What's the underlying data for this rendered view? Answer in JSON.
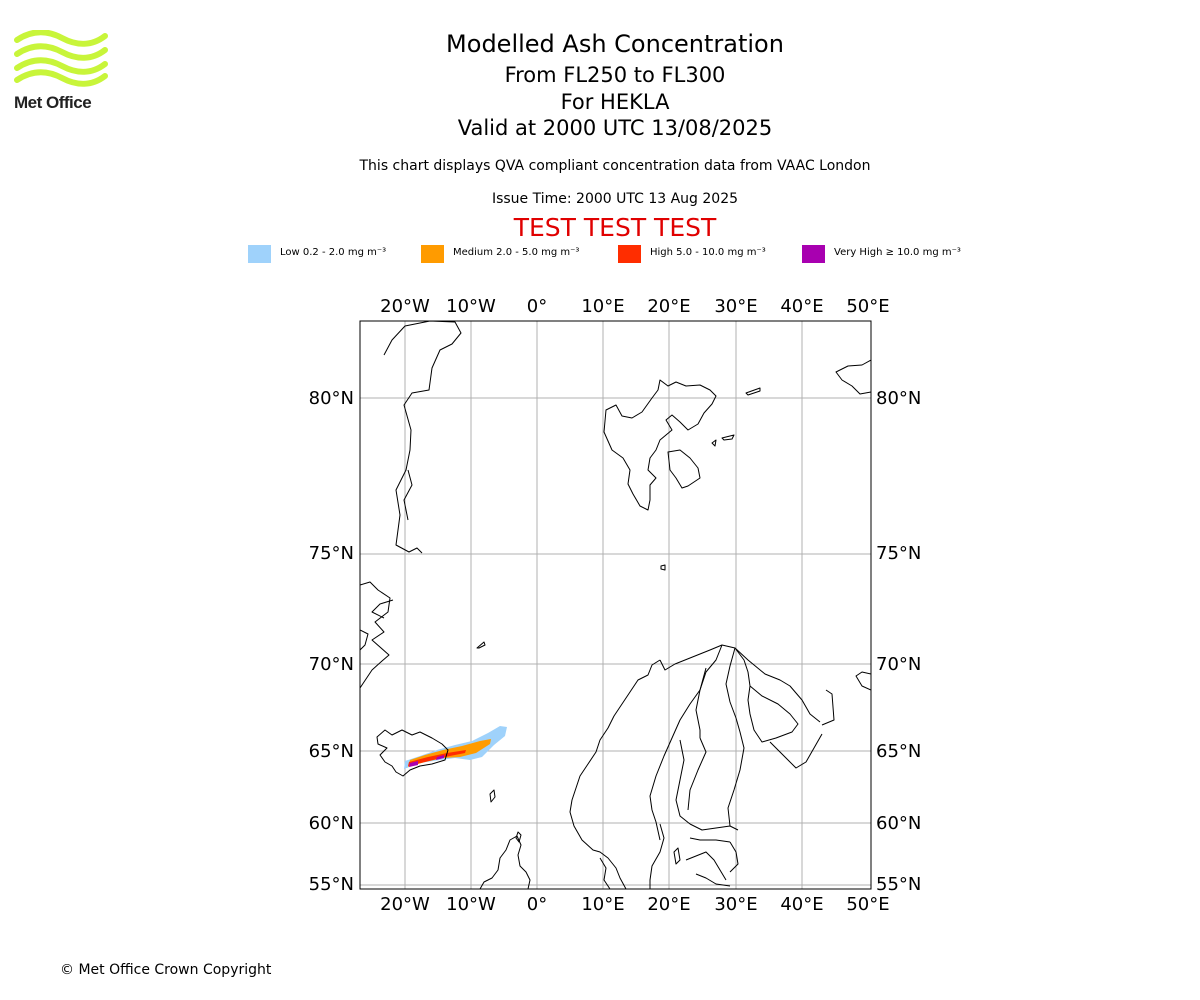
{
  "logo": {
    "text": "Met Office",
    "color": "#c8f53a"
  },
  "header": {
    "title": "Modelled Ash Concentration",
    "subtitle_levels": "From FL250 to FL300",
    "subtitle_volcano": "For HEKLA",
    "subtitle_valid": "Valid at 2000 UTC 13/08/2025",
    "description": "This chart displays QVA compliant concentration data from VAAC London",
    "issue_time": "Issue Time: 2000 UTC 13 Aug 2025",
    "test_banner": "TEST TEST TEST"
  },
  "legend": [
    {
      "key": "low",
      "label": "Low 0.2 - 2.0 mg m⁻³",
      "color": "#9fd2fb"
    },
    {
      "key": "medium",
      "label": "Medium 2.0 - 5.0 mg m⁻³",
      "color": "#ff9b00"
    },
    {
      "key": "high",
      "label": "High 5.0 - 10.0 mg m⁻³",
      "color": "#ff2d00"
    },
    {
      "key": "very-high",
      "label": "Very High  ≥  10.0 mg m⁻³",
      "color": "#a800b0"
    }
  ],
  "map": {
    "lon_ticks": [
      "20°W",
      "10°W",
      "0°",
      "10°E",
      "20°E",
      "30°E",
      "40°E",
      "50°E"
    ],
    "lat_ticks": [
      "80°N",
      "75°N",
      "70°N",
      "65°N",
      "60°N",
      "55°N"
    ],
    "gridlines": true,
    "gridline_color": "#b0b0b0"
  },
  "footer": {
    "copyright": "© Met Office Crown Copyright"
  }
}
